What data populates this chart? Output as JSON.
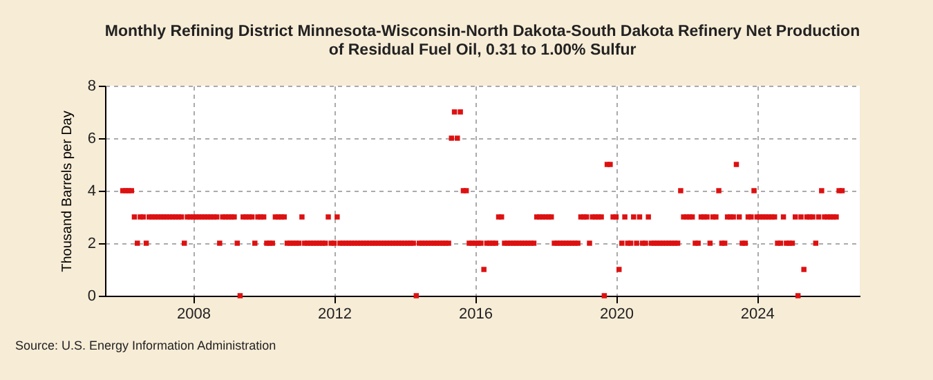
{
  "chart_data": {
    "type": "scatter",
    "title": "Monthly Refining District Minnesota-Wisconsin-North Dakota-South Dakota Refinery Net Production of Residual Fuel Oil, 0.31 to 1.00% Sulfur",
    "ylabel": "Thousand Barrels per Day",
    "x": [
      "2006-01",
      "2006-02",
      "2006-03",
      "2006-04",
      "2006-05",
      "2006-06",
      "2006-07",
      "2006-08",
      "2006-09",
      "2006-10",
      "2006-11",
      "2006-12",
      "2007-01",
      "2007-02",
      "2007-03",
      "2007-04",
      "2007-05",
      "2007-06",
      "2007-07",
      "2007-08",
      "2007-09",
      "2007-10",
      "2007-11",
      "2007-12",
      "2008-01",
      "2008-02",
      "2008-03",
      "2008-04",
      "2008-05",
      "2008-06",
      "2008-07",
      "2008-08",
      "2008-09",
      "2008-10",
      "2008-11",
      "2008-12",
      "2009-01",
      "2009-02",
      "2009-03",
      "2009-04",
      "2009-05",
      "2009-06",
      "2009-07",
      "2009-08",
      "2009-09",
      "2009-10",
      "2009-11",
      "2009-12",
      "2010-01",
      "2010-02",
      "2010-03",
      "2010-04",
      "2010-05",
      "2010-06",
      "2010-07",
      "2010-08",
      "2010-09",
      "2010-10",
      "2010-11",
      "2010-12",
      "2011-01",
      "2011-02",
      "2011-03",
      "2011-04",
      "2011-05",
      "2011-06",
      "2011-07",
      "2011-08",
      "2011-09",
      "2011-10",
      "2011-11",
      "2011-12",
      "2012-01",
      "2012-02",
      "2012-03",
      "2012-04",
      "2012-05",
      "2012-06",
      "2012-07",
      "2012-08",
      "2012-09",
      "2012-10",
      "2012-11",
      "2012-12",
      "2013-01",
      "2013-02",
      "2013-03",
      "2013-04",
      "2013-05",
      "2013-06",
      "2013-07",
      "2013-08",
      "2013-09",
      "2013-10",
      "2013-11",
      "2013-12",
      "2014-01",
      "2014-02",
      "2014-03",
      "2014-04",
      "2014-05",
      "2014-06",
      "2014-07",
      "2014-08",
      "2014-09",
      "2014-10",
      "2014-11",
      "2014-12",
      "2015-01",
      "2015-02",
      "2015-03",
      "2015-04",
      "2015-05",
      "2015-06",
      "2015-07",
      "2015-08",
      "2015-09",
      "2015-10",
      "2015-11",
      "2015-12",
      "2016-01",
      "2016-02",
      "2016-03",
      "2016-04",
      "2016-05",
      "2016-06",
      "2016-07",
      "2016-08",
      "2016-09",
      "2016-10",
      "2016-11",
      "2016-12",
      "2017-01",
      "2017-02",
      "2017-03",
      "2017-04",
      "2017-05",
      "2017-06",
      "2017-07",
      "2017-08",
      "2017-09",
      "2017-10",
      "2017-11",
      "2017-12",
      "2018-01",
      "2018-02",
      "2018-03",
      "2018-04",
      "2018-05",
      "2018-06",
      "2018-07",
      "2018-08",
      "2018-09",
      "2018-10",
      "2018-11",
      "2018-12",
      "2019-01",
      "2019-02",
      "2019-03",
      "2019-04",
      "2019-05",
      "2019-06",
      "2019-07",
      "2019-08",
      "2019-09",
      "2019-10",
      "2019-11",
      "2019-12",
      "2020-01",
      "2020-02",
      "2020-03",
      "2020-04",
      "2020-05",
      "2020-06",
      "2020-07",
      "2020-08",
      "2020-09",
      "2020-10",
      "2020-11",
      "2020-12",
      "2021-01",
      "2021-02",
      "2021-03",
      "2021-04",
      "2021-05",
      "2021-06",
      "2021-07",
      "2021-08",
      "2021-09",
      "2021-10",
      "2021-11",
      "2021-12",
      "2022-01",
      "2022-02",
      "2022-03",
      "2022-04",
      "2022-05",
      "2022-06",
      "2022-07",
      "2022-08",
      "2022-09",
      "2022-10",
      "2022-11",
      "2022-12",
      "2023-01",
      "2023-02",
      "2023-03",
      "2023-04",
      "2023-05",
      "2023-06",
      "2023-07",
      "2023-08",
      "2023-09",
      "2023-10",
      "2023-11",
      "2023-12",
      "2024-01",
      "2024-02",
      "2024-03",
      "2024-04",
      "2024-05",
      "2024-06",
      "2024-07",
      "2024-08",
      "2024-09",
      "2024-10",
      "2024-11",
      "2024-12",
      "2025-01",
      "2025-02",
      "2025-03",
      "2025-04",
      "2025-05",
      "2025-06",
      "2025-07",
      "2025-08",
      "2025-09",
      "2025-10",
      "2025-11",
      "2025-12",
      "2026-01",
      "2026-02",
      "2026-03",
      "2026-04",
      "2026-05",
      "2026-06"
    ],
    "series": [
      {
        "color": "#dd1111",
        "values": [
          4,
          4,
          4,
          4,
          3,
          2,
          3,
          3,
          2,
          3,
          3,
          3,
          3,
          3,
          3,
          3,
          3,
          3,
          3,
          3,
          3,
          2,
          3,
          3,
          3,
          3,
          3,
          3,
          3,
          3,
          3,
          3,
          3,
          2,
          3,
          3,
          3,
          3,
          3,
          2,
          0,
          3,
          3,
          3,
          3,
          2,
          3,
          3,
          3,
          2,
          2,
          2,
          3,
          3,
          3,
          3,
          2,
          2,
          2,
          2,
          2,
          3,
          2,
          2,
          2,
          2,
          2,
          2,
          2,
          2,
          3,
          2,
          2,
          3,
          2,
          2,
          2,
          2,
          2,
          2,
          2,
          2,
          2,
          2,
          2,
          2,
          2,
          2,
          2,
          2,
          2,
          2,
          2,
          2,
          2,
          2,
          2,
          2,
          2,
          2,
          0,
          2,
          2,
          2,
          2,
          2,
          2,
          2,
          2,
          2,
          2,
          2,
          6,
          7,
          6,
          7,
          4,
          4,
          2,
          2,
          2,
          2,
          2,
          1,
          2,
          2,
          2,
          2,
          3,
          3,
          2,
          2,
          2,
          2,
          2,
          2,
          2,
          2,
          2,
          2,
          2,
          3,
          3,
          3,
          3,
          3,
          3,
          2,
          2,
          2,
          2,
          2,
          2,
          2,
          2,
          2,
          3,
          3,
          3,
          2,
          3,
          3,
          3,
          3,
          0,
          5,
          5,
          3,
          3,
          1,
          2,
          3,
          2,
          2,
          3,
          2,
          3,
          2,
          2,
          3,
          2,
          2,
          2,
          2,
          2,
          2,
          2,
          2,
          2,
          2,
          4,
          3,
          3,
          3,
          3,
          2,
          2,
          3,
          3,
          3,
          2,
          3,
          3,
          4,
          2,
          2,
          3,
          3,
          3,
          5,
          3,
          2,
          2,
          3,
          3,
          4,
          3,
          3,
          3,
          3,
          3,
          3,
          3,
          2,
          2,
          3,
          2,
          2,
          2,
          3,
          0,
          3,
          1,
          3,
          3,
          3,
          2,
          3,
          4,
          3,
          3,
          3,
          3,
          3,
          4,
          4
        ]
      }
    ],
    "xlim": [
      "2005-07",
      "2026-12"
    ],
    "xticks": [
      "2008",
      "2012",
      "2016",
      "2020",
      "2024"
    ],
    "ylim": [
      0,
      8
    ],
    "yticks": [
      0,
      2,
      4,
      6,
      8
    ],
    "grid": true,
    "marker": "square",
    "annotations": [
      "Source: U.S. Energy Information Administration"
    ]
  }
}
